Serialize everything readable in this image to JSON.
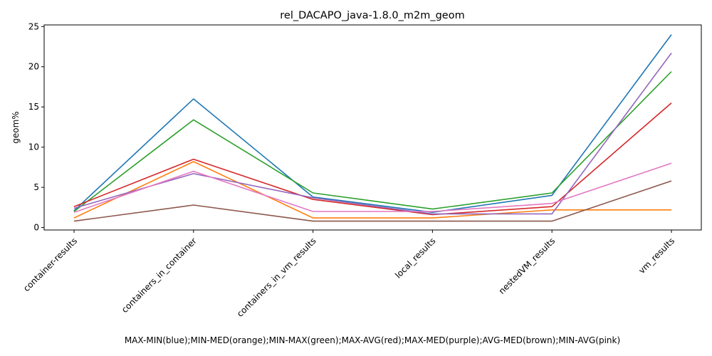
{
  "chart_data": {
    "type": "line",
    "title": "rel_DACAPO_java-1.8.0_m2m_geom",
    "xlabel": "MAX-MIN(blue);MIN-MED(orange);MIN-MAX(green);MAX-AVG(red);MAX-MED(purple);AVG-MED(brown);MIN-AVG(pink)",
    "ylabel": "geom%",
    "categories": [
      "container-results",
      "containers_in_container",
      "containers_in_vm_results",
      "local_results",
      "nestedVM_results",
      "vm_results"
    ],
    "ylim": [
      -0.3,
      25.2
    ],
    "yticks": [
      0,
      5,
      10,
      15,
      20,
      25
    ],
    "grid": false,
    "series": [
      {
        "color": "#1f77b4",
        "values": [
          2.1,
          16.0,
          3.8,
          1.9,
          4.0,
          24.0
        ]
      },
      {
        "color": "#ff7f0e",
        "values": [
          1.2,
          8.2,
          1.2,
          1.2,
          2.2,
          2.2
        ]
      },
      {
        "color": "#2ca02c",
        "values": [
          2.0,
          13.4,
          4.3,
          2.3,
          4.3,
          19.4
        ]
      },
      {
        "color": "#d62728",
        "values": [
          2.6,
          8.5,
          3.5,
          1.6,
          2.6,
          15.5
        ]
      },
      {
        "color": "#9467bd",
        "values": [
          2.4,
          6.7,
          3.7,
          1.7,
          1.7,
          21.7
        ]
      },
      {
        "color": "#8c564b",
        "values": [
          0.8,
          2.8,
          0.8,
          0.8,
          0.8,
          5.8
        ]
      },
      {
        "color": "#e377c2",
        "values": [
          1.9,
          7.0,
          2.0,
          2.0,
          3.0,
          8.0
        ]
      }
    ]
  }
}
